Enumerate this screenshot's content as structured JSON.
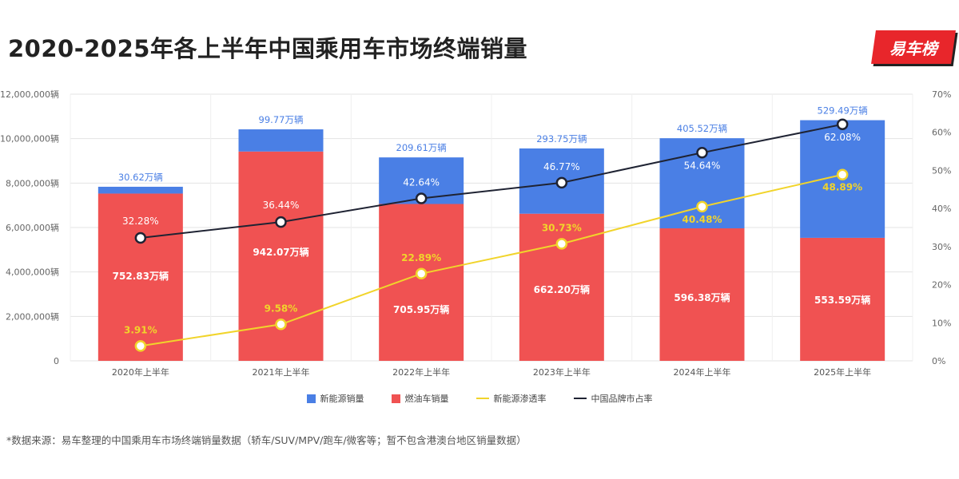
{
  "title": "2020-2025年各上半年中国乘用车市场终端销量",
  "logo_text": "易车榜",
  "footnote": "*数据来源：易车整理的中国乘用车市场终端销量数据（轿车/SUV/MPV/跑车/微客等；暂不包含港澳台地区销量数据）",
  "colors": {
    "nev": "#4a7fe5",
    "ice": "#f05252",
    "penetration": "#f1d42b",
    "share": "#1f2333",
    "grid": "#e3e3e3",
    "nev_label": "#4a7fe5",
    "penetration_label": "#f1d42b"
  },
  "chart_data": {
    "type": "bar",
    "stacked": true,
    "categories": [
      "2020年上半年",
      "2021年上半年",
      "2022年上半年",
      "2023年上半年",
      "2024年上半年",
      "2025年上半年"
    ],
    "series": [
      {
        "name": "燃油车销量",
        "values": [
          7528300,
          9420700,
          7059500,
          6622000,
          5963800,
          5535900
        ],
        "labels": [
          "752.83万辆",
          "942.07万辆",
          "705.95万辆",
          "662.20万辆",
          "596.38万辆",
          "553.59万辆"
        ]
      },
      {
        "name": "新能源销量",
        "values": [
          306200,
          997700,
          2096100,
          2937500,
          4055200,
          5294900
        ],
        "labels": [
          "30.62万辆",
          "99.77万辆",
          "209.61万辆",
          "293.75万辆",
          "405.52万辆",
          "529.49万辆"
        ]
      }
    ],
    "lines": [
      {
        "name": "新能源渗透率",
        "values": [
          3.91,
          9.58,
          22.89,
          30.73,
          40.48,
          48.89
        ],
        "labels": [
          "3.91%",
          "9.58%",
          "22.89%",
          "30.73%",
          "40.48%",
          "48.89%"
        ]
      },
      {
        "name": "中国品牌市占率",
        "values": [
          32.28,
          36.44,
          42.64,
          46.77,
          54.64,
          62.08
        ],
        "labels": [
          "32.28%",
          "36.44%",
          "42.64%",
          "46.77%",
          "54.64%",
          "62.08%"
        ]
      }
    ],
    "legend": [
      "新能源销量",
      "燃油车销量",
      "新能源渗透率",
      "中国品牌市占率"
    ],
    "y_left": {
      "min": 0,
      "max": 12000000,
      "ticks": [
        "0",
        "2,000,000辆",
        "4,000,000辆",
        "6,000,000辆",
        "8,000,000辆",
        "10,000,000辆",
        "12,000,000辆"
      ]
    },
    "y_right": {
      "min": 0,
      "max": 70,
      "ticks": [
        "0%",
        "10%",
        "20%",
        "30%",
        "40%",
        "50%",
        "60%",
        "70%"
      ]
    },
    "legend_position": "bottom",
    "grid": true
  }
}
